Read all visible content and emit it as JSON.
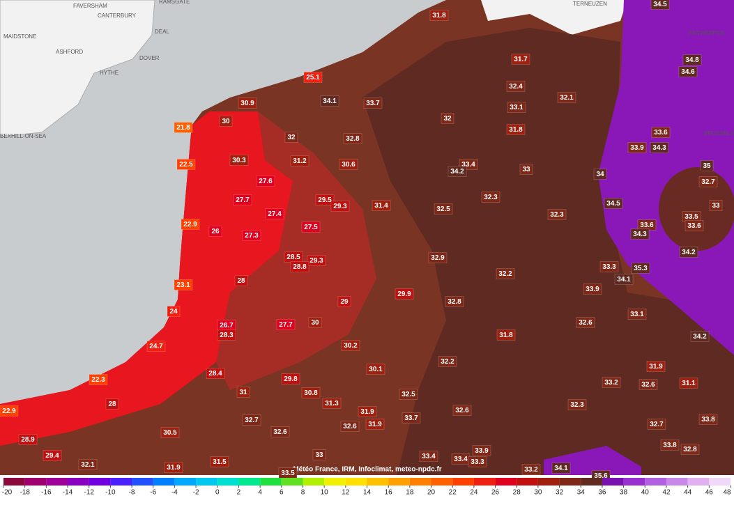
{
  "places": [
    "MAIDSTONE",
    "FAVERSHAM",
    "CANTERBURY",
    "RAMSGATE",
    "DEAL",
    "DOVER",
    "ASHFORD",
    "HYTHE",
    "BEXHILL-ON-SEA",
    "TERNEUZEN",
    "ANTWERPEN",
    "BRUSSELS"
  ],
  "stations": [
    31.8,
    31.7,
    25.1,
    34.1,
    33.7,
    32.4,
    32.1,
    33.1,
    30.9,
    30,
    32,
    31.8,
    21.8,
    32,
    32.8,
    33.6,
    33.9,
    34.3,
    30.3,
    31.2,
    30.6,
    22.5,
    33.4,
    34.2,
    33,
    35,
    34,
    32.7,
    27.6,
    27.7,
    29.5,
    29.3,
    31.4,
    32.3,
    32.5,
    34.5,
    33,
    27.4,
    32.3,
    33.5,
    22.9,
    26,
    27.5,
    33.6,
    33.6,
    34.3,
    27.3,
    34.2,
    28.5,
    29.3,
    32.9,
    28.8,
    33.3,
    35.3,
    32.2,
    34.1,
    23.1,
    28,
    33.9,
    29.9,
    29,
    32.8,
    33.1,
    24,
    26.7,
    27.7,
    30,
    32.6,
    28.3,
    31.8,
    34.2,
    24.7,
    30.2,
    30.1,
    32.2,
    31.9,
    28.4,
    22.3,
    29.8,
    30.8,
    33.2,
    32.6,
    31.1,
    31,
    32.5,
    31.3,
    28,
    22.9,
    32.3,
    31.9,
    32.6,
    33.7,
    32.7,
    33.8,
    31.9,
    32.6,
    32.7,
    30.5,
    32.6,
    28.9,
    33.8,
    32.8,
    33,
    33.9,
    29.4,
    33.4,
    33.4,
    33.3,
    32.1,
    31.5,
    31.9,
    33.2,
    34.1,
    33.5,
    34.5,
    34.8,
    34.6,
    35.6
  ],
  "attribution": "Météo France, IRM, Infoclimat, meteo-npdc.fr",
  "legend": {
    "ticks": [
      -20,
      -18,
      -16,
      -14,
      -12,
      -10,
      -8,
      -6,
      -4,
      -2,
      0,
      2,
      4,
      6,
      8,
      10,
      12,
      14,
      16,
      18,
      20,
      22,
      24,
      26,
      28,
      30,
      32,
      34,
      36,
      38,
      40,
      42,
      44,
      46,
      48
    ],
    "colors": [
      "#8a0a3c",
      "#a0006e",
      "#a0009a",
      "#8a00c0",
      "#7000e0",
      "#4a20ff",
      "#2050ff",
      "#0080ff",
      "#00a8ff",
      "#00c8f0",
      "#00e0d0",
      "#00e890",
      "#20e040",
      "#60e020",
      "#b0f000",
      "#f0f000",
      "#ffe000",
      "#ffc000",
      "#ffa000",
      "#ff8000",
      "#ff6000",
      "#ff4000",
      "#f02010",
      "#e00020",
      "#c01010",
      "#a02010",
      "#802818",
      "#602a20",
      "#7a10b0",
      "#9a30d0",
      "#b060e0",
      "#c888e8",
      "#e0b0f0",
      "#f0d8f8"
    ]
  }
}
